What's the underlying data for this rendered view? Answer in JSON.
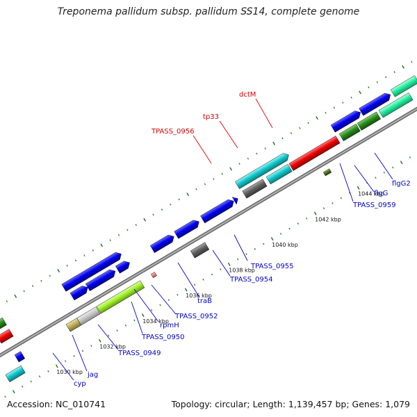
{
  "title": "Treponema pallidum subsp. pallidum SS14, complete genome",
  "footer": {
    "accession": "Accession: NC_010741",
    "summary": "Topology: circular; Length: 1,139,457 bp; Genes: 1,079"
  },
  "scale_labels": [
    "1030 kbp",
    "1032 kbp",
    "1034 kbp",
    "1036 kbp",
    "1038 kbp",
    "1040 kbp",
    "1042 kbp",
    "1044 kbp"
  ],
  "gene_labels": {
    "outer": [
      "dctM",
      "tp33",
      "TPASS_0956"
    ],
    "inner": [
      "TPASS_0955",
      "TPASS_0954",
      "traB",
      "TPASS_0952",
      "rpmH",
      "TPASS_0950",
      "TPASS_0949",
      "jag",
      "cyp",
      "TPASS_0959",
      "flgG",
      "flgG2"
    ]
  },
  "colors": {
    "outer_label": "#d40000",
    "inner_label": "#0000cc",
    "cds_blue": "#0000ee",
    "cds_red": "#ee0000",
    "cds_cyan": "#00c8c8",
    "cds_gray": "#606060",
    "cds_green": "#2a8a1a",
    "cds_lime": "#98f02a",
    "cds_olive": "#c0b060",
    "cds_mint": "#20f0a0",
    "backbone": "#8c8c8c",
    "tick_green": "#1a6e1a"
  }
}
